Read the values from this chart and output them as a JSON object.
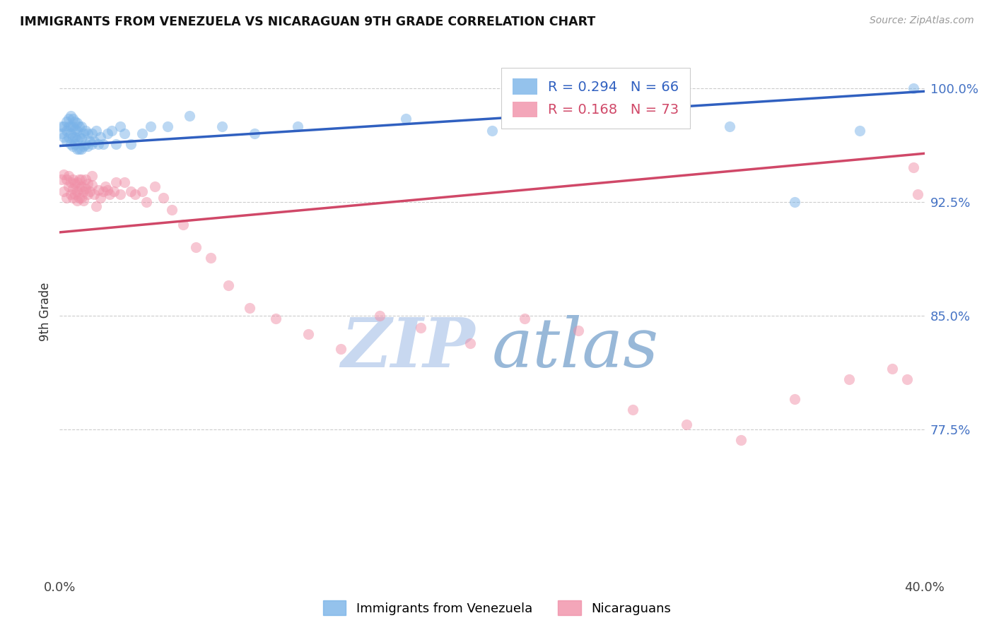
{
  "title": "IMMIGRANTS FROM VENEZUELA VS NICARAGUAN 9TH GRADE CORRELATION CHART",
  "source": "Source: ZipAtlas.com",
  "ylabel": "9th Grade",
  "ytick_labels": [
    "100.0%",
    "92.5%",
    "85.0%",
    "77.5%"
  ],
  "ytick_values": [
    1.0,
    0.925,
    0.85,
    0.775
  ],
  "legend_entries": [
    {
      "label": "R = 0.294   N = 66",
      "color": "#6aaee8"
    },
    {
      "label": "R = 0.168   N = 73",
      "color": "#f07898"
    }
  ],
  "legend_labels_bottom": [
    "Immigrants from Venezuela",
    "Nicaraguans"
  ],
  "blue_scatter_x": [
    0.001,
    0.001,
    0.002,
    0.002,
    0.003,
    0.003,
    0.003,
    0.004,
    0.004,
    0.004,
    0.005,
    0.005,
    0.005,
    0.005,
    0.006,
    0.006,
    0.006,
    0.006,
    0.007,
    0.007,
    0.007,
    0.007,
    0.008,
    0.008,
    0.008,
    0.008,
    0.009,
    0.009,
    0.009,
    0.01,
    0.01,
    0.01,
    0.011,
    0.011,
    0.012,
    0.012,
    0.013,
    0.013,
    0.014,
    0.015,
    0.015,
    0.016,
    0.017,
    0.018,
    0.019,
    0.02,
    0.022,
    0.024,
    0.026,
    0.028,
    0.03,
    0.033,
    0.038,
    0.042,
    0.05,
    0.06,
    0.075,
    0.09,
    0.11,
    0.16,
    0.2,
    0.26,
    0.31,
    0.34,
    0.37,
    0.395
  ],
  "blue_scatter_y": [
    0.97,
    0.975,
    0.968,
    0.975,
    0.965,
    0.972,
    0.978,
    0.968,
    0.975,
    0.98,
    0.963,
    0.97,
    0.975,
    0.982,
    0.962,
    0.968,
    0.975,
    0.98,
    0.963,
    0.968,
    0.973,
    0.978,
    0.96,
    0.966,
    0.972,
    0.977,
    0.96,
    0.968,
    0.975,
    0.96,
    0.967,
    0.975,
    0.962,
    0.97,
    0.963,
    0.972,
    0.962,
    0.97,
    0.965,
    0.963,
    0.97,
    0.965,
    0.972,
    0.963,
    0.968,
    0.963,
    0.97,
    0.972,
    0.963,
    0.975,
    0.97,
    0.963,
    0.97,
    0.975,
    0.975,
    0.982,
    0.975,
    0.97,
    0.975,
    0.98,
    0.972,
    0.977,
    0.975,
    0.925,
    0.972,
    1.0
  ],
  "pink_scatter_x": [
    0.001,
    0.002,
    0.002,
    0.003,
    0.003,
    0.004,
    0.004,
    0.005,
    0.005,
    0.006,
    0.006,
    0.006,
    0.007,
    0.007,
    0.008,
    0.008,
    0.008,
    0.009,
    0.009,
    0.009,
    0.01,
    0.01,
    0.01,
    0.011,
    0.011,
    0.012,
    0.012,
    0.013,
    0.013,
    0.014,
    0.015,
    0.015,
    0.016,
    0.017,
    0.018,
    0.019,
    0.02,
    0.021,
    0.022,
    0.023,
    0.025,
    0.026,
    0.028,
    0.03,
    0.033,
    0.035,
    0.038,
    0.04,
    0.044,
    0.048,
    0.052,
    0.057,
    0.063,
    0.07,
    0.078,
    0.088,
    0.1,
    0.115,
    0.13,
    0.148,
    0.167,
    0.19,
    0.215,
    0.24,
    0.265,
    0.29,
    0.315,
    0.34,
    0.365,
    0.385,
    0.392,
    0.395,
    0.397
  ],
  "pink_scatter_y": [
    0.94,
    0.932,
    0.943,
    0.928,
    0.94,
    0.935,
    0.942,
    0.93,
    0.938,
    0.928,
    0.934,
    0.94,
    0.93,
    0.937,
    0.926,
    0.932,
    0.938,
    0.928,
    0.934,
    0.94,
    0.928,
    0.935,
    0.94,
    0.926,
    0.932,
    0.934,
    0.94,
    0.93,
    0.937,
    0.932,
    0.936,
    0.942,
    0.93,
    0.922,
    0.933,
    0.928,
    0.932,
    0.935,
    0.933,
    0.93,
    0.932,
    0.938,
    0.93,
    0.938,
    0.932,
    0.93,
    0.932,
    0.925,
    0.935,
    0.928,
    0.92,
    0.91,
    0.895,
    0.888,
    0.87,
    0.855,
    0.848,
    0.838,
    0.828,
    0.85,
    0.842,
    0.832,
    0.848,
    0.84,
    0.788,
    0.778,
    0.768,
    0.795,
    0.808,
    0.815,
    0.808,
    0.948,
    0.93
  ],
  "blue_line_x": [
    0.0,
    0.4
  ],
  "blue_line_y": [
    0.962,
    0.998
  ],
  "pink_line_x": [
    0.0,
    0.4
  ],
  "pink_line_y": [
    0.905,
    0.957
  ],
  "background_color": "#ffffff",
  "scatter_blue_color": "#7ab3e8",
  "scatter_pink_color": "#f090a8",
  "line_blue_color": "#3060c0",
  "line_pink_color": "#d04868",
  "scatter_alpha": 0.5,
  "scatter_size": 120,
  "watermark_zip_color": "#c8d8f0",
  "watermark_atlas_color": "#98b8d8",
  "xmin": 0.0,
  "xmax": 0.4,
  "ymin": 0.68,
  "ymax": 1.025
}
